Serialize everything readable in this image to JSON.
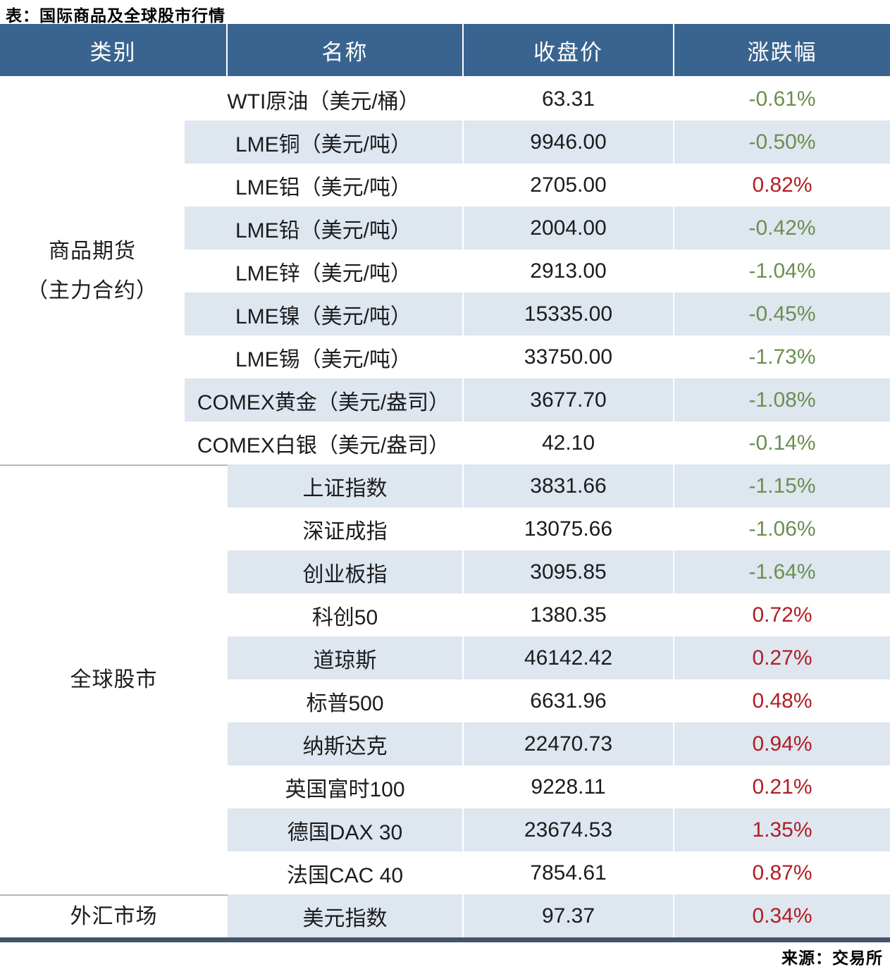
{
  "page": {
    "title": "表：国际商品及全球股市行情",
    "source": "来源：交易所"
  },
  "table": {
    "headers": {
      "category": "类别",
      "name": "名称",
      "close": "收盘价",
      "change": "涨跌幅"
    },
    "groups": [
      {
        "label": "商品期货（主力合约）",
        "label_lines": [
          "商品期货",
          "（主力合约）"
        ],
        "rows": 9
      },
      {
        "label": "全球股市",
        "label_lines": [
          "全球股市"
        ],
        "rows": 10
      },
      {
        "label": "外汇市场",
        "label_lines": [
          "外汇市场"
        ],
        "rows": 1
      }
    ],
    "rows": [
      {
        "name": "WTI原油（美元/桶）",
        "close": "63.31",
        "change": "-0.61%"
      },
      {
        "name": "LME铜（美元/吨）",
        "close": "9946.00",
        "change": "-0.50%"
      },
      {
        "name": "LME铝（美元/吨）",
        "close": "2705.00",
        "change": "0.82%"
      },
      {
        "name": "LME铅（美元/吨）",
        "close": "2004.00",
        "change": "-0.42%"
      },
      {
        "name": "LME锌（美元/吨）",
        "close": "2913.00",
        "change": "-1.04%"
      },
      {
        "name": "LME镍（美元/吨）",
        "close": "15335.00",
        "change": "-0.45%"
      },
      {
        "name": "LME锡（美元/吨）",
        "close": "33750.00",
        "change": "-1.73%"
      },
      {
        "name": "COMEX黄金（美元/盎司）",
        "close": "3677.70",
        "change": "-1.08%"
      },
      {
        "name": "COMEX白银（美元/盎司）",
        "close": "42.10",
        "change": "-0.14%"
      },
      {
        "name": "上证指数",
        "close": "3831.66",
        "change": "-1.15%"
      },
      {
        "name": "深证成指",
        "close": "13075.66",
        "change": "-1.06%"
      },
      {
        "name": "创业板指",
        "close": "3095.85",
        "change": "-1.64%"
      },
      {
        "name": "科创50",
        "close": "1380.35",
        "change": "0.72%"
      },
      {
        "name": "道琼斯",
        "close": "46142.42",
        "change": "0.27%"
      },
      {
        "name": "标普500",
        "close": "6631.96",
        "change": "0.48%"
      },
      {
        "name": "纳斯达克",
        "close": "22470.73",
        "change": "0.94%"
      },
      {
        "name": "英国富时100",
        "close": "9228.11",
        "change": "0.21%"
      },
      {
        "name": "德国DAX 30",
        "close": "23674.53",
        "change": "1.35%"
      },
      {
        "name": "法国CAC 40",
        "close": "7854.61",
        "change": "0.87%"
      },
      {
        "name": "美元指数",
        "close": "97.37",
        "change": "0.34%"
      }
    ]
  },
  "colors": {
    "header_bg": "#39648F",
    "row_alt_bg": "#DEE6F0",
    "up_red": "#B01E24",
    "down_green": "#6B8F4F"
  }
}
